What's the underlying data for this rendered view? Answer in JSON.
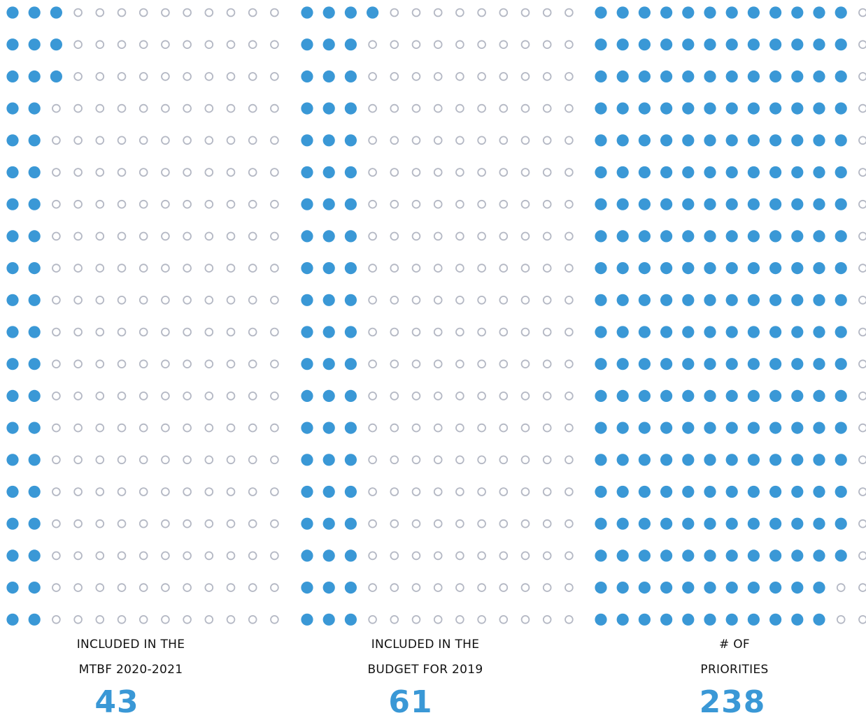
{
  "accent_color": "#3a98d6",
  "empty_dot_color": "#b4b8c4",
  "chart_data": [
    {
      "type": "dot-matrix",
      "label_line1": "INCLUDED IN THE",
      "label_line2": "MTBF 2020-2021",
      "value": "43",
      "filled_per_row": [
        3,
        3,
        3,
        2,
        2,
        2,
        2,
        2,
        2,
        2,
        2,
        2,
        2,
        2,
        2,
        2,
        2,
        2,
        2,
        2
      ]
    },
    {
      "type": "dot-matrix",
      "label_line1": "INCLUDED IN THE",
      "label_line2": "BUDGET FOR 2019",
      "value": "61",
      "filled_per_row": [
        4,
        3,
        3,
        3,
        3,
        3,
        3,
        3,
        3,
        3,
        3,
        3,
        3,
        3,
        3,
        3,
        3,
        3,
        3,
        3
      ]
    },
    {
      "type": "dot-matrix",
      "label_line1": "# OF",
      "label_line2": "PRIORITIES",
      "value": "238",
      "filled_per_row": [
        12,
        12,
        12,
        12,
        12,
        12,
        12,
        12,
        12,
        12,
        12,
        12,
        12,
        12,
        12,
        12,
        12,
        12,
        11,
        11
      ]
    }
  ]
}
